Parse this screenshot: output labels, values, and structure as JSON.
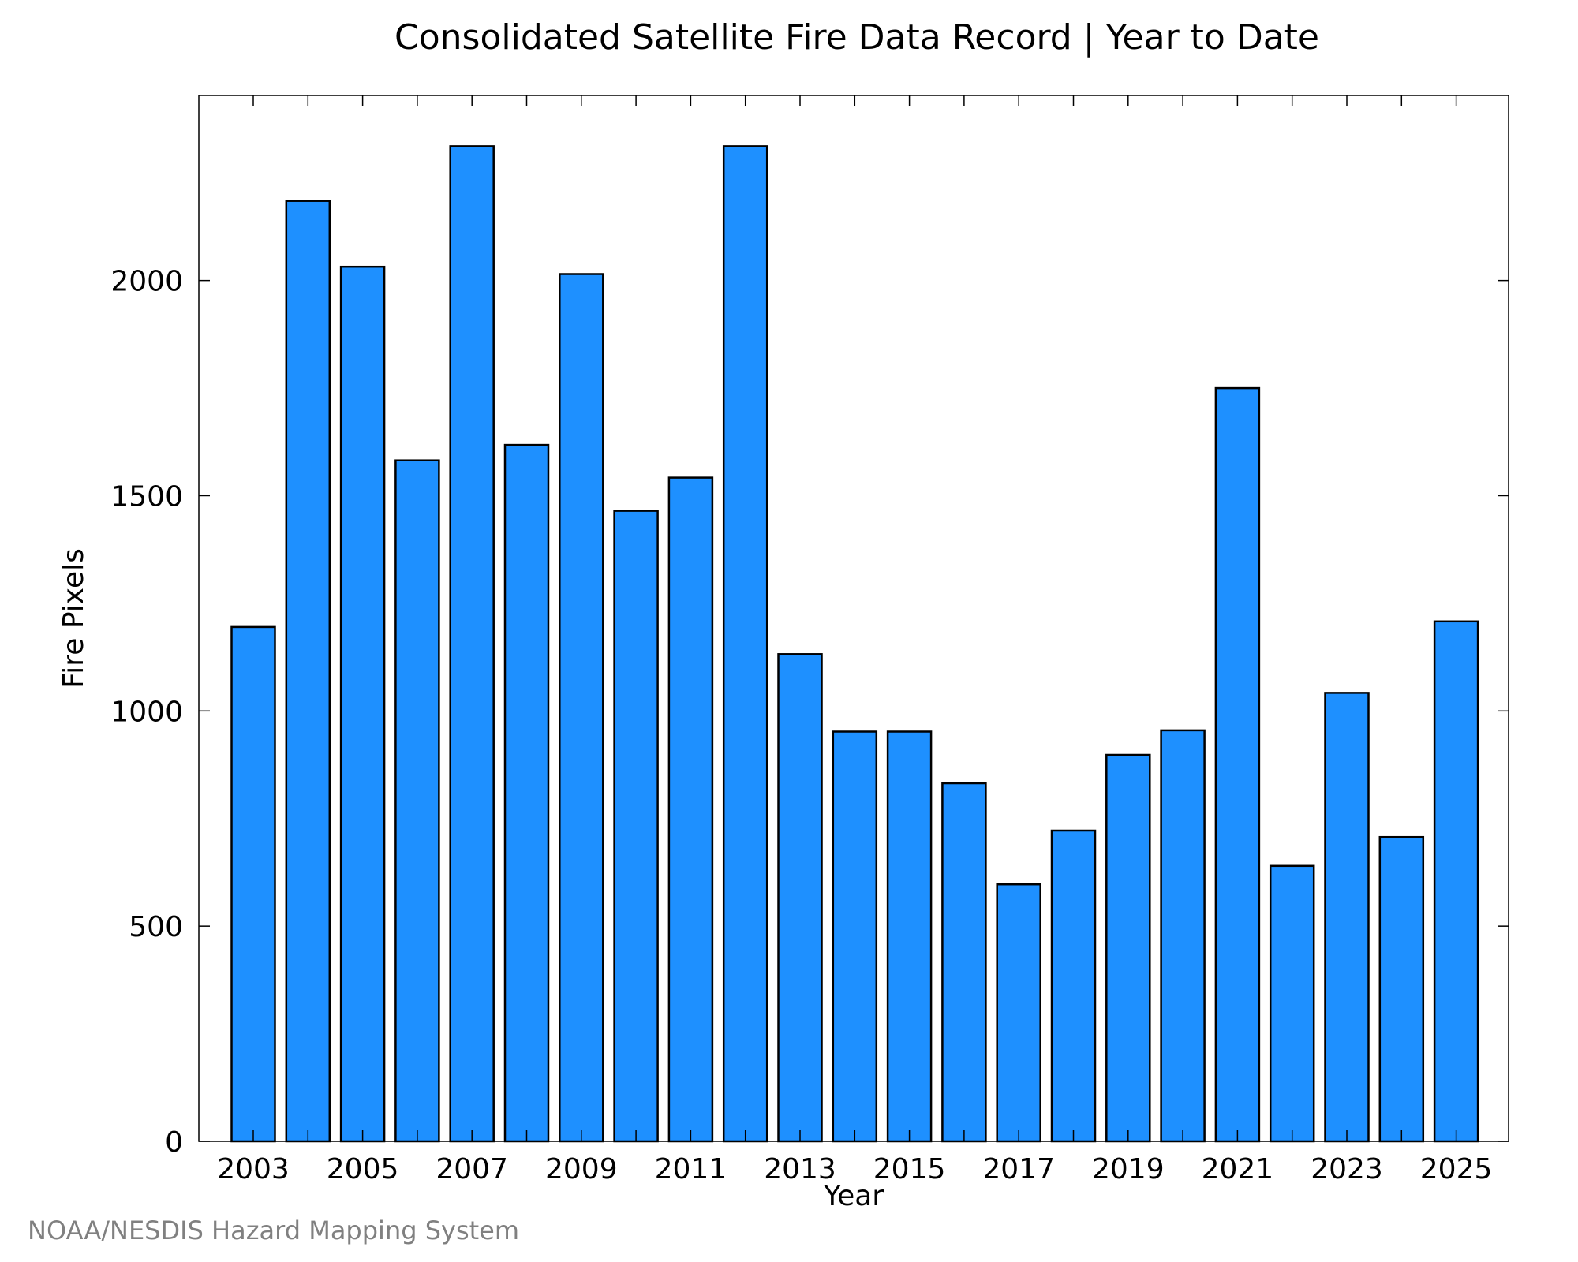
{
  "chart_data": {
    "type": "bar",
    "title": "Consolidated Satellite Fire Data Record | Year to Date",
    "xlabel": "Year",
    "ylabel": "Fire Pixels",
    "categories": [
      "2003",
      "2004",
      "2005",
      "2006",
      "2007",
      "2008",
      "2009",
      "2010",
      "2011",
      "2012",
      "2013",
      "2014",
      "2015",
      "2016",
      "2017",
      "2018",
      "2019",
      "2020",
      "2021",
      "2022",
      "2023",
      "2024",
      "2025"
    ],
    "values": [
      1195,
      2185,
      2032,
      1582,
      2312,
      1618,
      2015,
      1465,
      1542,
      2312,
      1132,
      952,
      952,
      832,
      597,
      722,
      898,
      955,
      1750,
      640,
      1042,
      707,
      1208
    ],
    "x_tick_labels": [
      "2003",
      "2005",
      "2007",
      "2009",
      "2011",
      "2013",
      "2015",
      "2017",
      "2019",
      "2021",
      "2023",
      "2025"
    ],
    "y_tick_labels": [
      "0",
      "500",
      "1000",
      "1500",
      "2000"
    ],
    "y_ticks": [
      0,
      500,
      1000,
      1500,
      2000
    ],
    "ylim": [
      0,
      2430
    ],
    "grid": false,
    "legend": "none",
    "bar_color": "#1e90ff",
    "bar_edge_color": "#000000"
  },
  "credit": "NOAA/NESDIS Hazard Mapping System",
  "colors": {
    "credit_text": "#808080",
    "axis": "#000000",
    "background": "#ffffff"
  }
}
